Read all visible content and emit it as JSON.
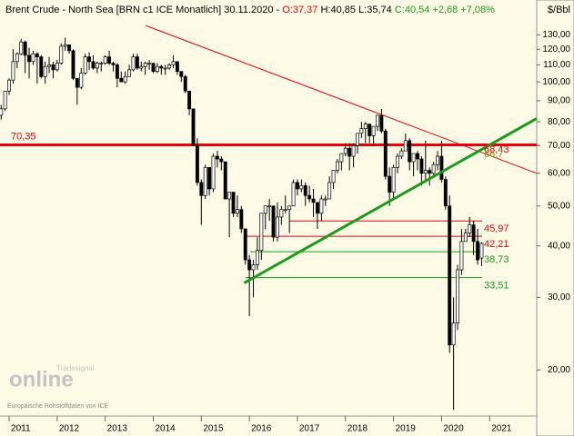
{
  "chart_data": {
    "type": "candlestick",
    "title": "Brent Crude - North Sea [BRN c1 ICE  Monatlich] 30.11.2020 - ",
    "quote_open": "O:37,37",
    "quote_hl": "H:40,85 L:35,74",
    "quote_change": "C:40,54 +2,68 +7,08%",
    "unit": "$/Bbl",
    "watermark": "online",
    "watermark_small": "Tradesignal",
    "source": "Europäische Rohstoffdaten von ICE",
    "log_scale": true,
    "up_color": "#ffffff",
    "down_color": "#000000",
    "ylim": [
      15.7,
      158
    ],
    "yticks": [
      {
        "value": 20,
        "label": "20,00"
      },
      {
        "value": 30,
        "label": "30,00"
      },
      {
        "value": 40,
        "label": "40,00"
      },
      {
        "value": 50,
        "label": "50,00"
      },
      {
        "value": 60,
        "label": "60,00"
      },
      {
        "value": 70,
        "label": "70,00"
      },
      {
        "value": 80,
        "label": "80,00"
      },
      {
        "value": 90,
        "label": "90,00"
      },
      {
        "value": 100,
        "label": "100,00"
      },
      {
        "value": 110,
        "label": "110,00"
      },
      {
        "value": 120,
        "label": "120,00"
      },
      {
        "value": 130,
        "label": "130,00"
      }
    ],
    "xlim": [
      2010.81,
      2021.98
    ],
    "xticks": [
      2011,
      2012,
      2013,
      2014,
      2015,
      2016,
      2017,
      2018,
      2019,
      2020,
      2021
    ],
    "ohlc": [
      [
        83,
        88,
        81,
        86
      ],
      [
        86,
        95,
        85,
        95
      ],
      [
        95,
        102,
        93,
        101
      ],
      [
        101,
        120,
        99,
        112
      ],
      [
        112,
        118,
        108,
        117
      ],
      [
        117,
        127,
        116,
        125
      ],
      [
        125,
        126,
        105,
        116
      ],
      [
        116,
        121,
        102,
        112
      ],
      [
        112,
        119,
        110,
        117
      ],
      [
        117,
        118,
        99,
        115
      ],
      [
        115,
        116,
        102,
        103
      ],
      [
        103,
        112,
        99,
        109
      ],
      [
        109,
        115,
        105,
        110
      ],
      [
        110,
        112,
        102,
        107
      ],
      [
        107,
        113,
        106,
        111
      ],
      [
        111,
        124,
        110,
        122
      ],
      [
        122,
        128,
        119,
        123
      ],
      [
        123,
        123,
        117,
        119
      ],
      [
        119,
        120,
        101,
        102
      ],
      [
        102,
        102,
        88,
        97
      ],
      [
        97,
        108,
        96,
        105
      ],
      [
        105,
        117,
        104,
        115
      ],
      [
        115,
        118,
        107,
        112
      ],
      [
        112,
        116,
        107,
        108
      ],
      [
        108,
        112,
        105,
        111
      ],
      [
        111,
        112,
        106,
        111
      ],
      [
        111,
        116,
        110,
        115
      ],
      [
        115,
        119,
        110,
        111
      ],
      [
        111,
        112,
        106,
        110
      ],
      [
        110,
        111,
        97,
        102
      ],
      [
        102,
        106,
        100,
        100
      ],
      [
        100,
        106,
        99,
        103
      ],
      [
        103,
        110,
        103,
        107
      ],
      [
        107,
        117,
        106,
        115
      ],
      [
        115,
        117,
        107,
        108
      ],
      [
        108,
        112,
        106,
        109
      ],
      [
        109,
        112,
        104,
        111
      ],
      [
        111,
        113,
        107,
        111
      ],
      [
        111,
        111,
        105,
        106
      ],
      [
        106,
        111,
        105,
        109
      ],
      [
        109,
        110,
        104,
        108
      ],
      [
        108,
        110,
        104,
        108
      ],
      [
        108,
        111,
        107,
        110
      ],
      [
        110,
        116,
        108,
        112
      ],
      [
        112,
        112,
        104,
        106
      ],
      [
        106,
        106,
        100,
        103
      ],
      [
        103,
        104,
        94,
        95
      ],
      [
        95,
        95,
        83,
        86
      ],
      [
        86,
        86,
        70,
        70
      ],
      [
        70,
        73,
        56,
        57
      ],
      [
        57,
        58,
        45,
        53
      ],
      [
        53,
        63,
        52,
        62
      ],
      [
        62,
        62,
        53,
        55
      ],
      [
        55,
        67,
        54,
        66
      ],
      [
        66,
        68,
        62,
        65
      ],
      [
        65,
        66,
        61,
        64
      ],
      [
        64,
        64,
        52,
        52
      ],
      [
        52,
        54,
        42,
        54
      ],
      [
        54,
        54,
        47,
        48
      ],
      [
        48,
        53,
        47,
        49
      ],
      [
        49,
        50,
        43,
        44
      ],
      [
        44,
        44,
        36,
        37
      ],
      [
        37,
        38,
        27,
        35
      ],
      [
        35,
        37,
        30,
        36
      ],
      [
        36,
        42,
        35,
        39
      ],
      [
        39,
        48,
        37,
        48
      ],
      [
        48,
        50,
        44,
        50
      ],
      [
        50,
        52,
        46,
        50
      ],
      [
        50,
        50,
        41,
        42
      ],
      [
        42,
        51,
        41,
        47
      ],
      [
        47,
        50,
        45,
        49
      ],
      [
        49,
        53,
        48,
        49
      ],
      [
        49,
        50,
        43,
        50
      ],
      [
        50,
        58,
        50,
        57
      ],
      [
        57,
        58,
        53,
        55
      ],
      [
        55,
        58,
        54,
        56
      ],
      [
        56,
        57,
        50,
        53
      ],
      [
        53,
        56,
        51,
        52
      ],
      [
        52,
        55,
        47,
        51
      ],
      [
        51,
        51,
        44,
        48
      ],
      [
        48,
        53,
        46,
        52
      ],
      [
        52,
        53,
        50,
        52
      ],
      [
        52,
        59,
        52,
        57
      ],
      [
        57,
        61,
        55,
        61
      ],
      [
        61,
        65,
        60,
        64
      ],
      [
        64,
        67,
        61,
        67
      ],
      [
        67,
        71,
        66,
        69
      ],
      [
        69,
        71,
        61,
        66
      ],
      [
        66,
        71,
        62,
        70
      ],
      [
        70,
        75,
        67,
        75
      ],
      [
        75,
        80,
        73,
        77
      ],
      [
        77,
        80,
        71,
        79
      ],
      [
        79,
        79,
        71,
        74
      ],
      [
        74,
        78,
        70,
        78
      ],
      [
        78,
        83,
        76,
        83
      ],
      [
        83,
        86,
        75,
        76
      ],
      [
        76,
        77,
        58,
        59
      ],
      [
        59,
        62,
        50,
        54
      ],
      [
        54,
        63,
        52,
        62
      ],
      [
        62,
        67,
        60,
        66
      ],
      [
        66,
        69,
        65,
        68
      ],
      [
        68,
        75,
        68,
        72
      ],
      [
        72,
        73,
        61,
        64
      ],
      [
        64,
        66,
        59,
        67
      ],
      [
        67,
        68,
        61,
        65
      ],
      [
        65,
        66,
        56,
        60
      ],
      [
        60,
        72,
        57,
        61
      ],
      [
        61,
        62,
        56,
        60
      ],
      [
        60,
        64,
        59,
        63
      ],
      [
        63,
        68,
        61,
        66
      ],
      [
        66,
        72,
        57,
        58
      ],
      [
        58,
        59,
        49,
        50
      ],
      [
        50,
        53,
        22,
        23
      ],
      [
        23,
        30,
        16,
        26
      ],
      [
        26,
        36,
        25,
        35
      ],
      [
        35,
        44,
        34,
        41
      ],
      [
        41,
        44,
        41,
        43
      ],
      [
        43,
        47,
        42,
        45
      ],
      [
        45,
        46,
        38,
        41
      ],
      [
        41,
        44,
        36,
        37
      ],
      [
        37.37,
        40.85,
        35.74,
        40.54
      ]
    ],
    "levels": [
      {
        "value": 70.35,
        "label": "70,35",
        "color": "#e8000b"
      },
      {
        "value": 45.97,
        "label": "45,97",
        "color": "#e8000b"
      },
      {
        "value": 42.21,
        "label": "42,21",
        "color": "#e8000b"
      },
      {
        "value": 38.73,
        "label": "38,73",
        "color": "#1a9b1a"
      },
      {
        "value": 33.51,
        "label": "33,51",
        "color": "#1a9b1a"
      }
    ],
    "trendlines": [
      {
        "x": [
          2013.84,
          2021.98
        ],
        "y": [
          137,
          60
        ],
        "color": "#e8000b"
      },
      {
        "x": [
          2015.89,
          2021.98
        ],
        "y": [
          32.5,
          81.5
        ],
        "color": "#1a9b1a"
      }
    ],
    "annotations": [
      {
        "value": 68.43,
        "label": "68,43",
        "color": "#e8000b"
      },
      {
        "value": 66.7,
        "label": "66,7",
        "color": "#8a8a20"
      }
    ]
  }
}
